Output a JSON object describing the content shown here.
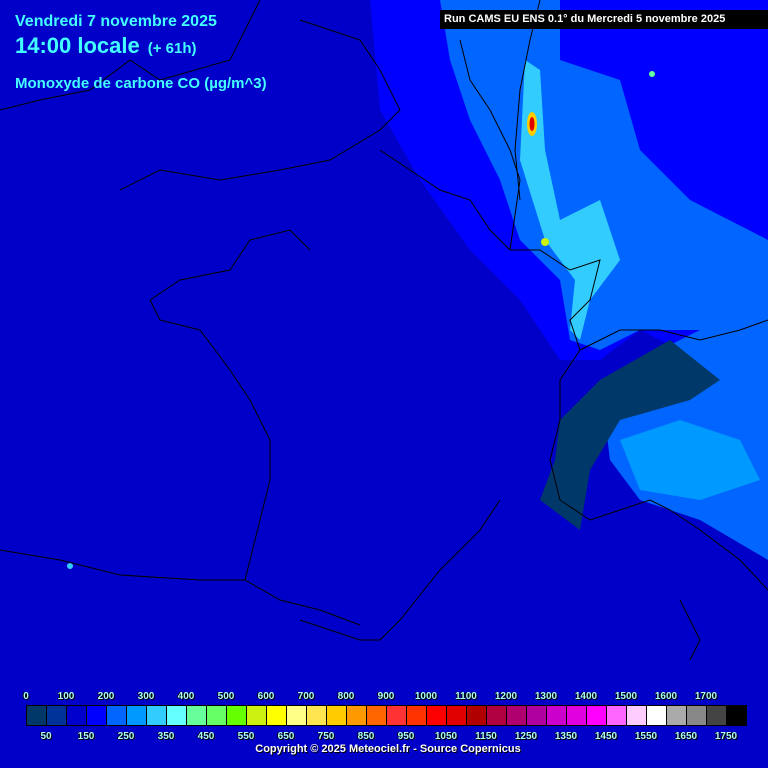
{
  "header": {
    "date": "Vendredi 7 novembre 2025",
    "time": "14:00 locale",
    "lead": "(+ 61h)",
    "parameter": "Monoxyde de carbone CO (µg/m^3)",
    "run": "Run CAMS EU ENS 0.1° du Mercredi 5 novembre 2025"
  },
  "legend": {
    "top_labels": [
      "0",
      "100",
      "200",
      "300",
      "400",
      "500",
      "600",
      "700",
      "800",
      "900",
      "1000",
      "1100",
      "1200",
      "1300",
      "1400",
      "1500",
      "1600",
      "1700"
    ],
    "bottom_labels": [
      "50",
      "150",
      "250",
      "350",
      "450",
      "550",
      "650",
      "750",
      "850",
      "950",
      "1050",
      "1150",
      "1250",
      "1350",
      "1450",
      "1550",
      "1650",
      "1750"
    ],
    "colors": [
      "#00386a",
      "#003399",
      "#0000cc",
      "#0000ff",
      "#0066ff",
      "#0099ff",
      "#33ccff",
      "#66ffff",
      "#66ff99",
      "#66ff66",
      "#66ff00",
      "#ccf010",
      "#ffff00",
      "#ffff88",
      "#ffe650",
      "#ffcc00",
      "#ff9900",
      "#ff6600",
      "#ff3333",
      "#ff3300",
      "#ff0000",
      "#e00000",
      "#b00000",
      "#b00040",
      "#b00070",
      "#b000a0",
      "#cc00cc",
      "#e000e0",
      "#ff00ff",
      "#ff66ff",
      "#ffccff",
      "#ffffff",
      "#aaaaaa",
      "#888888",
      "#444444",
      "#000000"
    ]
  },
  "footer": {
    "copyright": "Copyright © 2025 Meteociel.fr - Source Copernicus"
  },
  "colors": {
    "background": "#0000c8",
    "text": "#44ffff"
  }
}
